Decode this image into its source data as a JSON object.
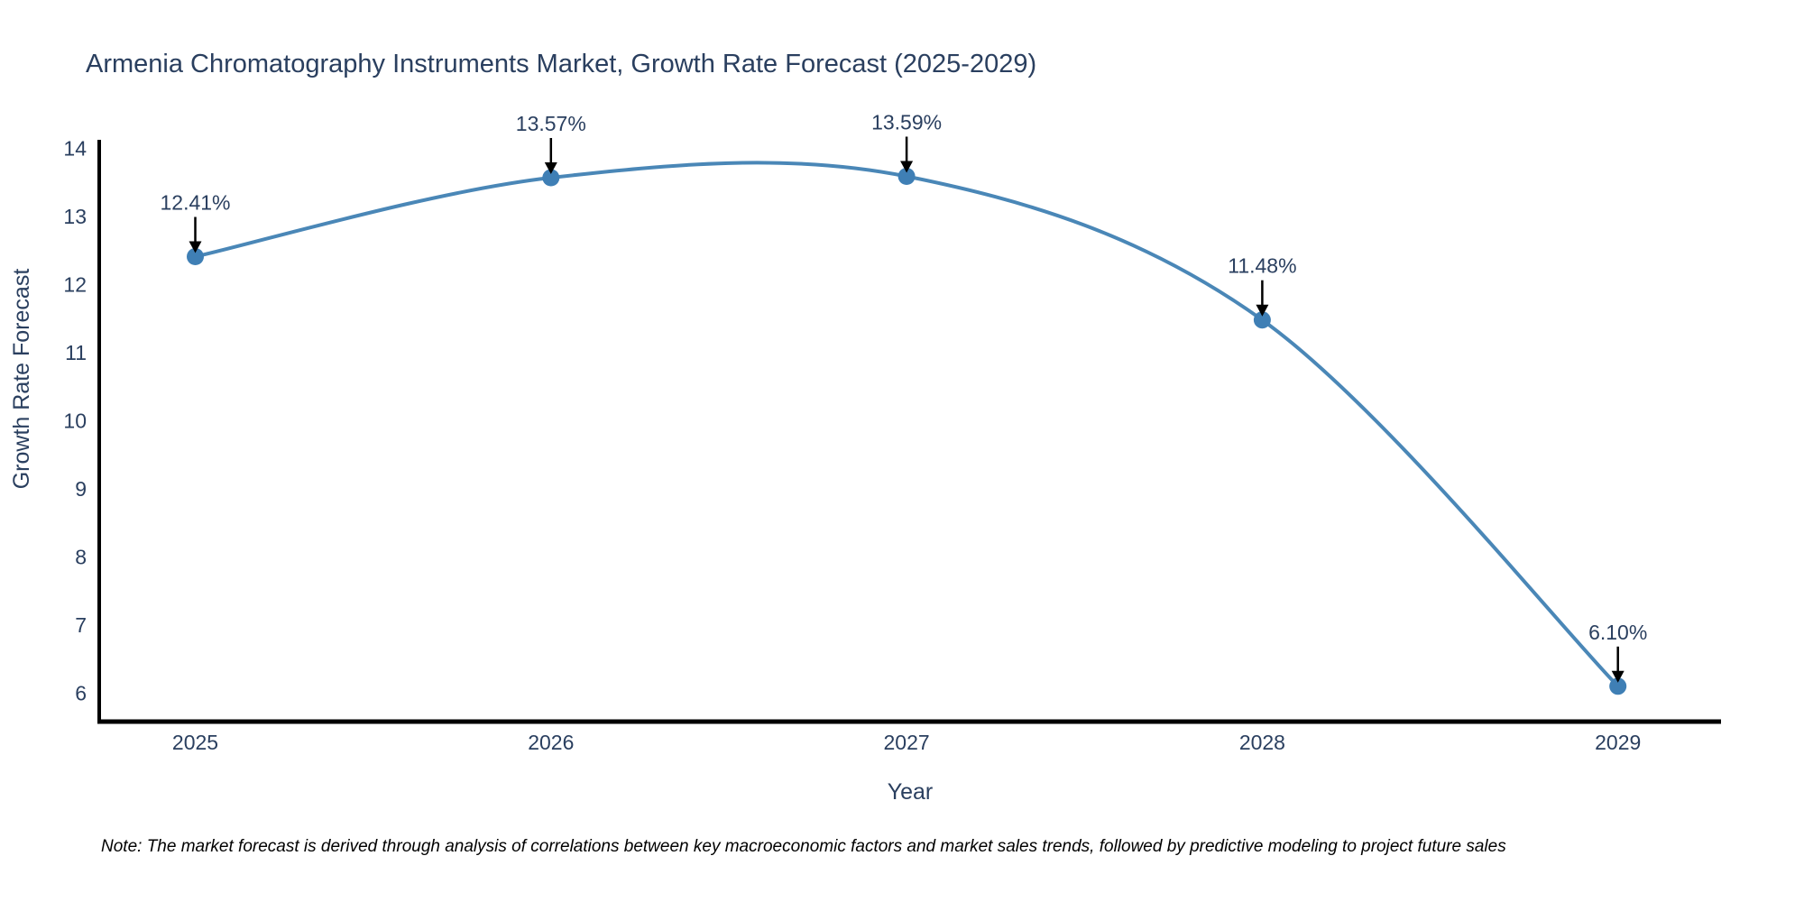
{
  "title": "Armenia Chromatography Instruments Market, Growth Rate Forecast (2025-2029)",
  "note": "Note: The market forecast is derived through analysis of correlations between key macroeconomic factors and market sales trends, followed by predictive modeling to project future sales",
  "chart_data": {
    "type": "line",
    "title": "Armenia Chromatography Instruments Market, Growth Rate Forecast (2025-2029)",
    "xlabel": "Year",
    "ylabel": "Growth Rate Forecast",
    "x": [
      2025,
      2026,
      2027,
      2028,
      2029
    ],
    "values": [
      12.41,
      13.57,
      13.59,
      11.48,
      6.1
    ],
    "point_labels": [
      "12.41%",
      "13.57%",
      "13.59%",
      "11.48%",
      "6.10%"
    ],
    "xticks": [
      "2025",
      "2026",
      "2027",
      "2028",
      "2029"
    ],
    "yticks": [
      6,
      7,
      8,
      9,
      10,
      11,
      12,
      13,
      14
    ],
    "xlim": [
      2024.73,
      2029.29
    ],
    "ylim": [
      5.58,
      14.1
    ],
    "grid": false,
    "legend": "none",
    "line_shape": "spline",
    "line_color": "#4a87b7",
    "marker_color": "#3f7fb5",
    "axis_line_color": "#000000",
    "annotation_arrow_color": "#000000",
    "text_color": "#2a3f5f",
    "background_color": "#ffffff"
  }
}
